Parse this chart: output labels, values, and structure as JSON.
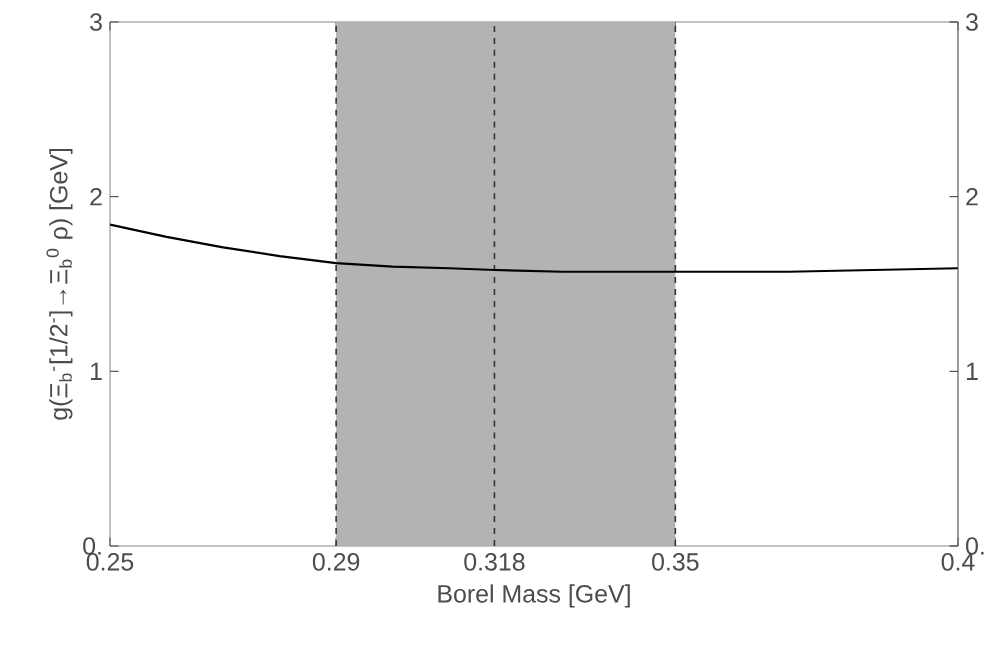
{
  "chart_data": {
    "type": "line",
    "xlabel": "Borel Mass [GeV]",
    "ylabel": "g(Ξ$_{b}$$^{-}$[1/2$^{-}$]→Ξ$_{b}$$^{0}$ ρ) [GeV]",
    "xlim": [
      0.25,
      0.4
    ],
    "xticks": [
      0.25,
      0.29,
      0.318,
      0.35,
      0.4
    ],
    "ylim": [
      0,
      3
    ],
    "yticks": [
      {
        "value": 0,
        "label": "0."
      },
      1,
      2,
      3
    ],
    "y2lim": [
      0,
      3
    ],
    "y2ticks": [
      {
        "value": 0,
        "label": "0."
      },
      1,
      2,
      3
    ],
    "series": [
      {
        "color": "#000000",
        "x": [
          0.25,
          0.26,
          0.27,
          0.28,
          0.29,
          0.3,
          0.31,
          0.318,
          0.33,
          0.35,
          0.37,
          0.4
        ],
        "values": [
          1.84,
          1.77,
          1.71,
          1.66,
          1.62,
          1.6,
          1.59,
          1.58,
          1.57,
          1.57,
          1.57,
          1.59
        ]
      }
    ],
    "bands": [
      {
        "axis": "x",
        "from": 0.29,
        "to": 0.35,
        "color": "#b3b3b3"
      }
    ],
    "ref_lines": [
      {
        "axis": "x",
        "value": 0.29,
        "line_style": "dashed",
        "color": "#333333"
      },
      {
        "axis": "x",
        "value": 0.318,
        "line_style": "dashed",
        "color": "#333333"
      },
      {
        "axis": "x",
        "value": 0.35,
        "line_style": "dashed",
        "color": "#333333"
      }
    ],
    "grid": false,
    "marker": "none",
    "line_style": "solid"
  }
}
